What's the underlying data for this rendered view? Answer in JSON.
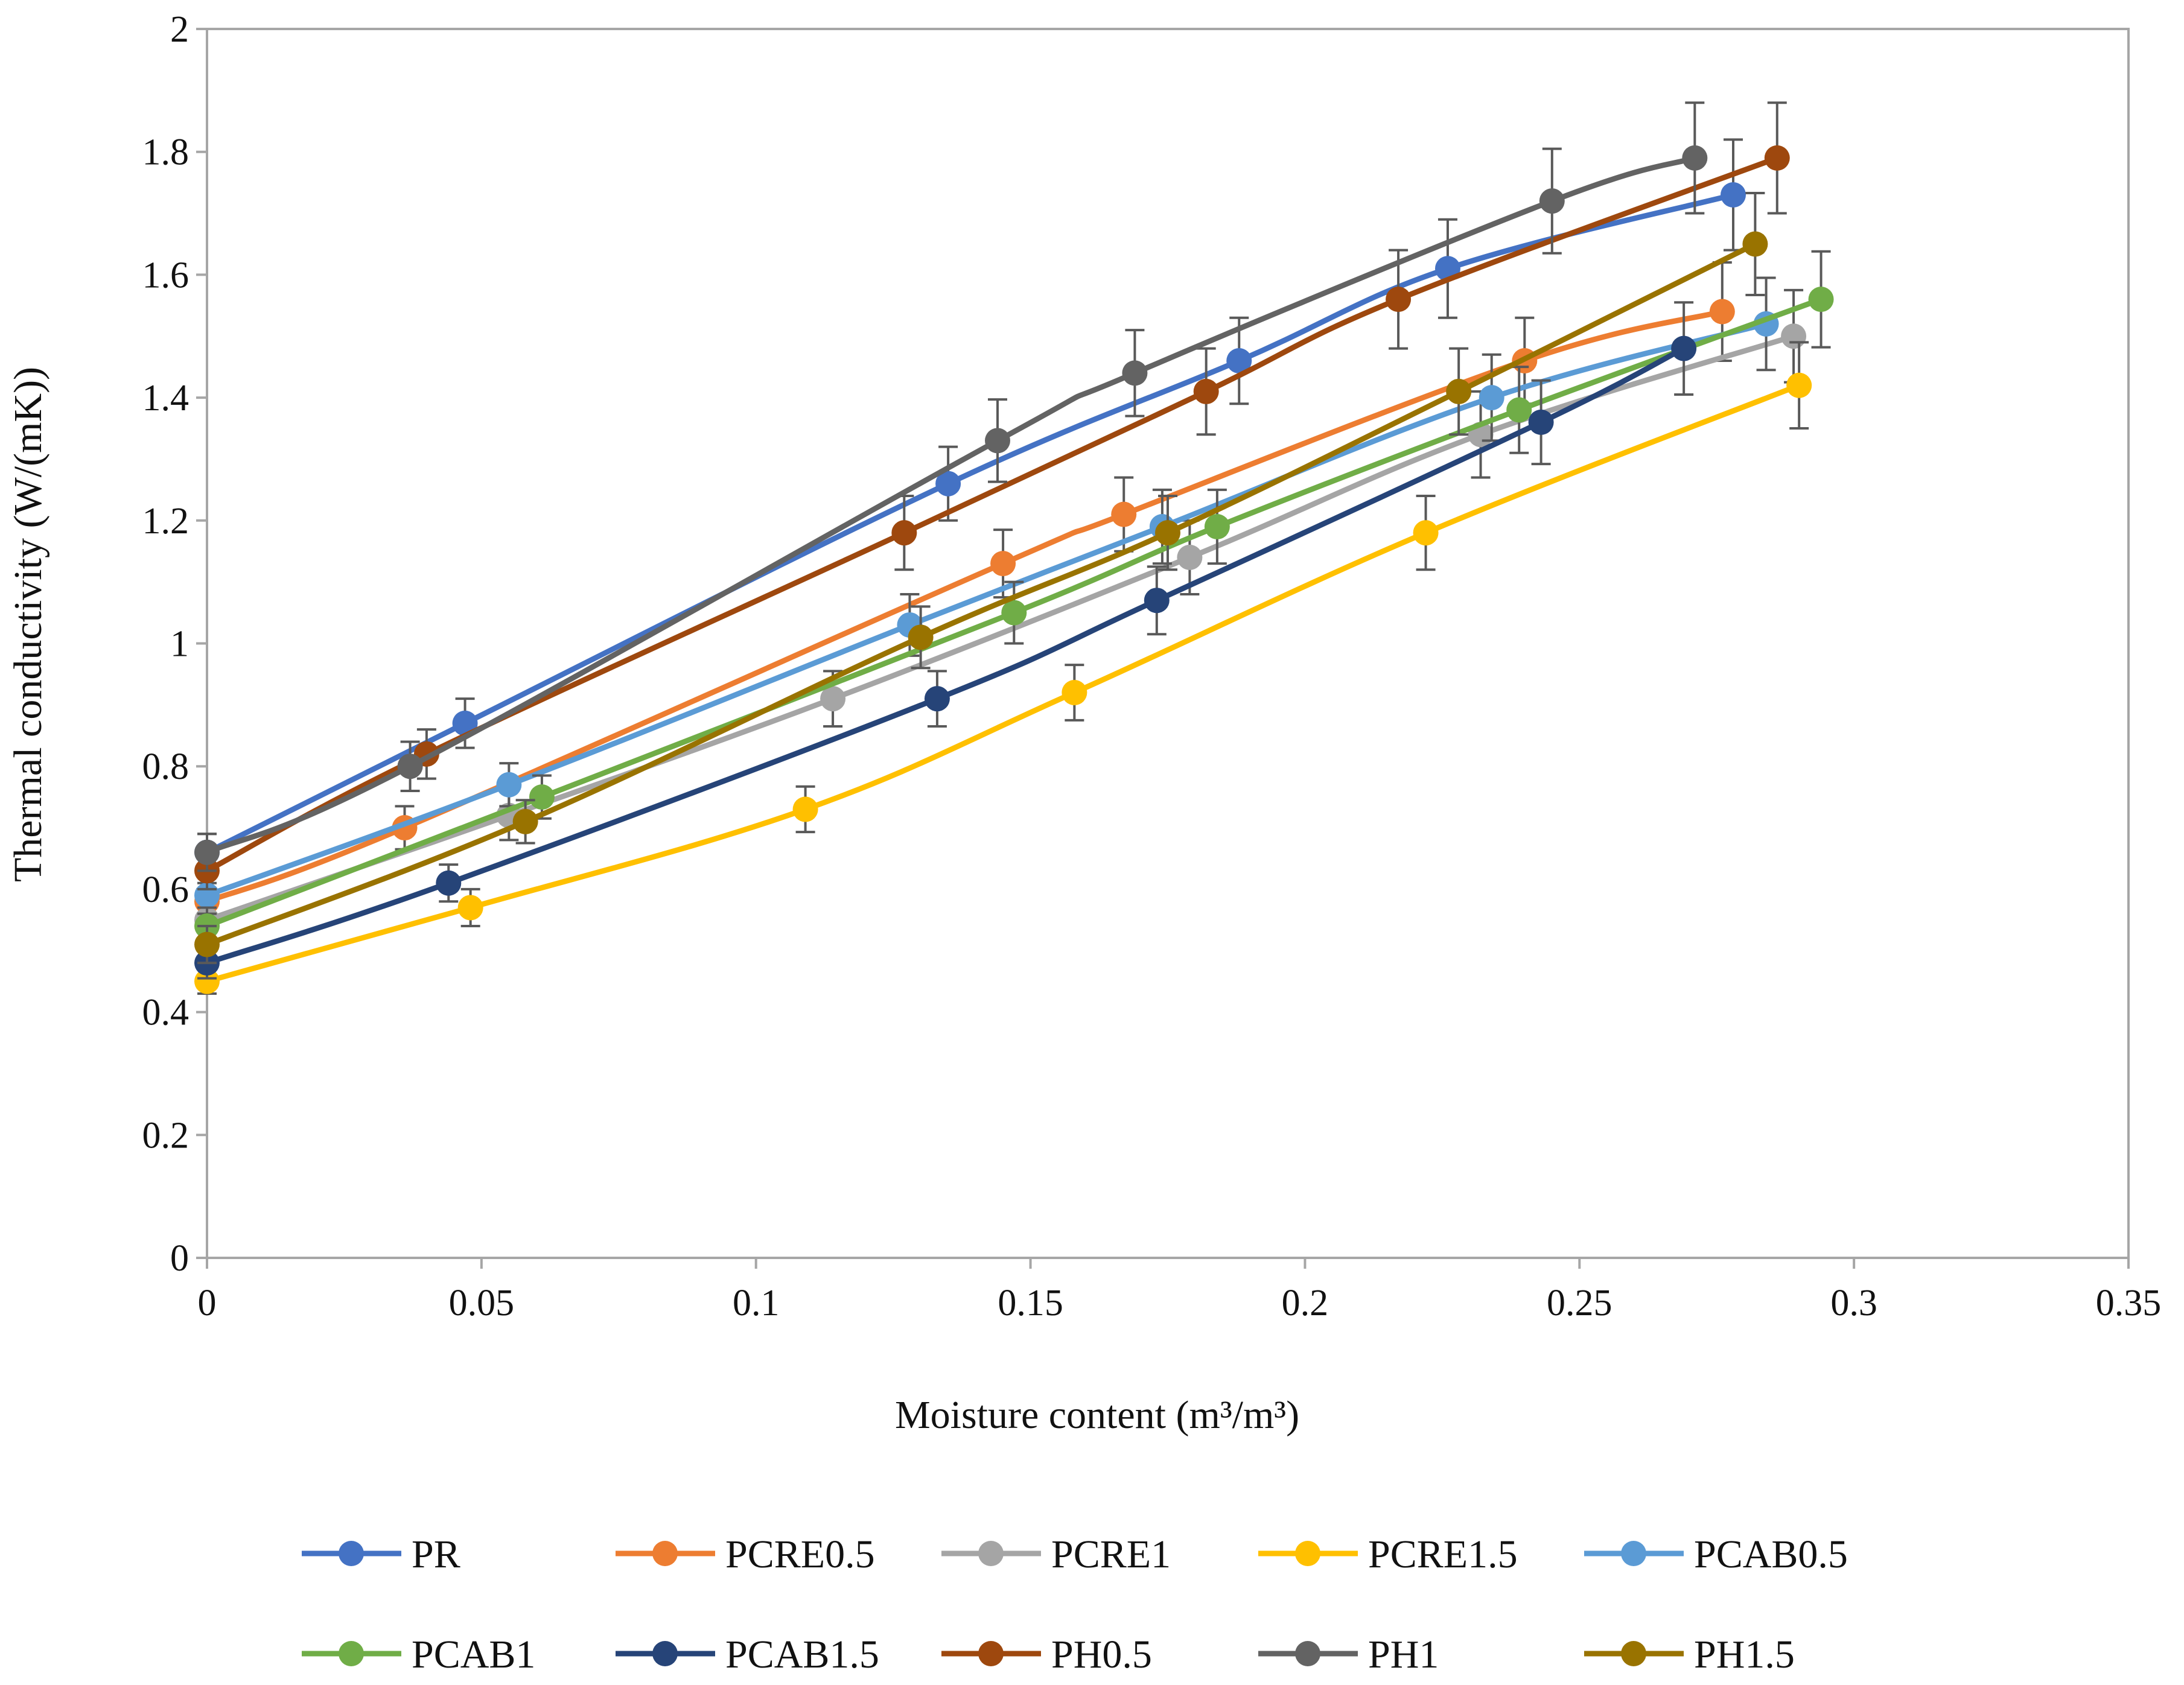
{
  "chart_data": {
    "type": "line",
    "title": "",
    "xlabel": "Moisture content (m³/m³)",
    "ylabel": "Thermal conductivity (W/(mK))",
    "xlim": [
      0,
      0.35
    ],
    "ylim": [
      0,
      2
    ],
    "xticks": [
      0,
      0.05,
      0.1,
      0.15,
      0.2,
      0.25,
      0.3,
      0.35
    ],
    "xtick_labels": [
      "0",
      "0.05",
      "0.1",
      "0.15",
      "0.2",
      "0.25",
      "0.3",
      "0.35"
    ],
    "yticks": [
      0,
      0.2,
      0.4,
      0.6,
      0.8,
      1,
      1.2,
      1.4,
      1.6,
      1.8,
      2
    ],
    "ytick_labels": [
      "0",
      "0.2",
      "0.4",
      "0.6",
      "0.8",
      "1",
      "1.2",
      "1.4",
      "1.6",
      "1.8",
      "2"
    ],
    "grid": false,
    "legend_position": "bottom",
    "series": [
      {
        "name": "PR",
        "color": "#4472C4",
        "points": [
          [
            0,
            0.66
          ],
          [
            0.047,
            0.87
          ],
          [
            0.135,
            1.26
          ],
          [
            0.188,
            1.46
          ],
          [
            0.226,
            1.61
          ],
          [
            0.278,
            1.73
          ]
        ],
        "errors": [
          0.03,
          0.04,
          0.06,
          0.07,
          0.08,
          0.09
        ]
      },
      {
        "name": "PCRE0.5",
        "color": "#ED7D31",
        "points": [
          [
            0,
            0.58
          ],
          [
            0.036,
            0.7
          ],
          [
            0.145,
            1.13
          ],
          [
            0.167,
            1.21
          ],
          [
            0.24,
            1.46
          ],
          [
            0.276,
            1.54
          ]
        ],
        "errors": [
          0.03,
          0.035,
          0.055,
          0.06,
          0.07,
          0.08
        ]
      },
      {
        "name": "PCRE1",
        "color": "#A5A5A5",
        "points": [
          [
            0,
            0.55
          ],
          [
            0.055,
            0.72
          ],
          [
            0.114,
            0.91
          ],
          [
            0.179,
            1.14
          ],
          [
            0.232,
            1.34
          ],
          [
            0.289,
            1.5
          ]
        ],
        "errors": [
          0.03,
          0.04,
          0.045,
          0.06,
          0.07,
          0.075
        ]
      },
      {
        "name": "PCRE1.5",
        "color": "#FFC000",
        "points": [
          [
            0,
            0.45
          ],
          [
            0.048,
            0.57
          ],
          [
            0.109,
            0.73
          ],
          [
            0.158,
            0.92
          ],
          [
            0.222,
            1.18
          ],
          [
            0.29,
            1.42
          ]
        ],
        "errors": [
          0.02,
          0.03,
          0.037,
          0.045,
          0.06,
          0.07
        ]
      },
      {
        "name": "PCAB0.5",
        "color": "#5B9BD5",
        "points": [
          [
            0,
            0.59
          ],
          [
            0.055,
            0.77
          ],
          [
            0.128,
            1.03
          ],
          [
            0.174,
            1.19
          ],
          [
            0.234,
            1.4
          ],
          [
            0.284,
            1.52
          ]
        ],
        "errors": [
          0.03,
          0.035,
          0.05,
          0.06,
          0.07,
          0.075
        ]
      },
      {
        "name": "PCAB1",
        "color": "#70AD47",
        "points": [
          [
            0,
            0.54
          ],
          [
            0.061,
            0.75
          ],
          [
            0.147,
            1.05
          ],
          [
            0.184,
            1.19
          ],
          [
            0.239,
            1.38
          ],
          [
            0.294,
            1.56
          ]
        ],
        "errors": [
          0.03,
          0.035,
          0.05,
          0.06,
          0.07,
          0.078
        ]
      },
      {
        "name": "PCAB1.5",
        "color": "#264478",
        "points": [
          [
            0,
            0.48
          ],
          [
            0.044,
            0.61
          ],
          [
            0.133,
            0.91
          ],
          [
            0.173,
            1.07
          ],
          [
            0.243,
            1.36
          ],
          [
            0.269,
            1.48
          ]
        ],
        "errors": [
          0.025,
          0.03,
          0.045,
          0.055,
          0.068,
          0.075
        ]
      },
      {
        "name": "PH0.5",
        "color": "#9E480E",
        "points": [
          [
            0,
            0.63
          ],
          [
            0.04,
            0.82
          ],
          [
            0.127,
            1.18
          ],
          [
            0.182,
            1.41
          ],
          [
            0.217,
            1.56
          ],
          [
            0.286,
            1.79
          ]
        ],
        "errors": [
          0.03,
          0.04,
          0.06,
          0.07,
          0.08,
          0.09
        ]
      },
      {
        "name": "PH1",
        "color": "#636363",
        "points": [
          [
            0,
            0.66
          ],
          [
            0.037,
            0.8
          ],
          [
            0.144,
            1.33
          ],
          [
            0.169,
            1.44
          ],
          [
            0.245,
            1.72
          ],
          [
            0.271,
            1.79
          ]
        ],
        "errors": [
          0.03,
          0.04,
          0.067,
          0.07,
          0.085,
          0.09
        ]
      },
      {
        "name": "PH1.5",
        "color": "#997300",
        "points": [
          [
            0,
            0.51
          ],
          [
            0.058,
            0.71
          ],
          [
            0.13,
            1.01
          ],
          [
            0.175,
            1.18
          ],
          [
            0.228,
            1.41
          ],
          [
            0.282,
            1.65
          ]
        ],
        "errors": [
          0.03,
          0.035,
          0.05,
          0.06,
          0.07,
          0.083
        ]
      }
    ]
  }
}
